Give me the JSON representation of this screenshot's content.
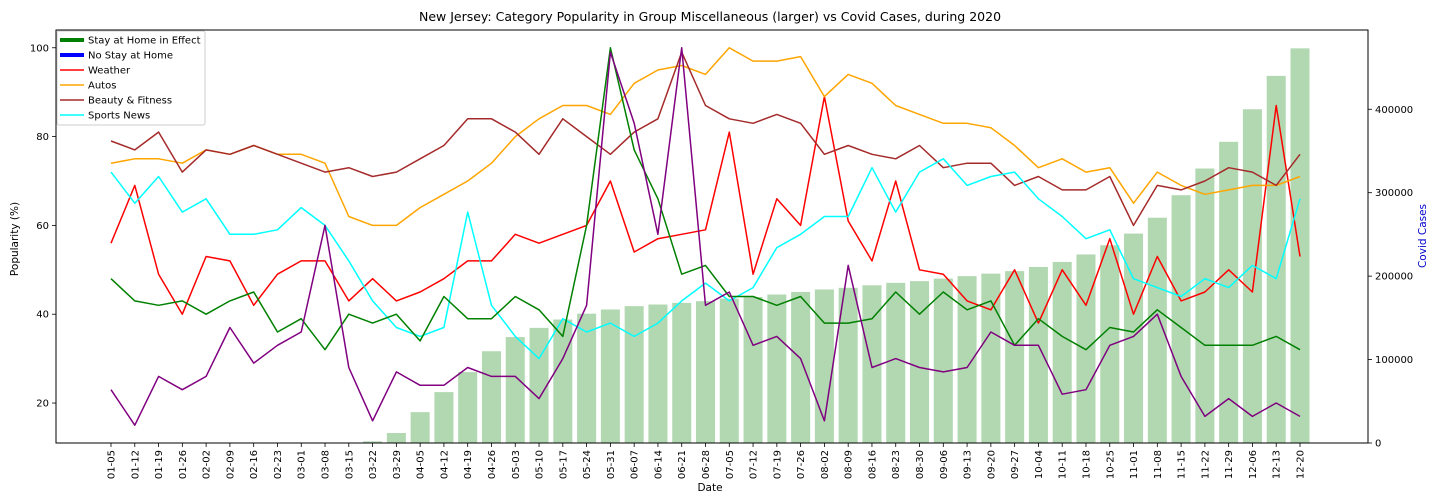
{
  "chart_data": {
    "type": "line",
    "title": "New Jersey: Category Popularity in Group Miscellaneous (larger) vs Covid Cases, during 2020",
    "xlabel": "Date",
    "ylabel": "Popularity (%)",
    "y2label": "Covid Cases",
    "ylim": [
      11,
      104
    ],
    "y2lim": [
      0,
      495000
    ],
    "yticks": [
      20,
      40,
      60,
      80,
      100
    ],
    "y2ticks": [
      0,
      100000,
      200000,
      300000,
      400000
    ],
    "legend_position": "top-left",
    "categories": [
      "01-05",
      "01-12",
      "01-19",
      "01-26",
      "02-02",
      "02-09",
      "02-16",
      "02-23",
      "03-01",
      "03-08",
      "03-15",
      "03-22",
      "03-29",
      "04-05",
      "04-12",
      "04-19",
      "04-26",
      "05-03",
      "05-10",
      "05-17",
      "05-24",
      "05-31",
      "06-07",
      "06-14",
      "06-21",
      "06-28",
      "07-05",
      "07-12",
      "07-19",
      "07-26",
      "08-02",
      "08-09",
      "08-16",
      "08-23",
      "08-30",
      "09-06",
      "09-13",
      "09-20",
      "09-27",
      "10-04",
      "10-11",
      "10-18",
      "10-25",
      "11-01",
      "11-08",
      "11-15",
      "11-22",
      "11-29",
      "12-06",
      "12-13",
      "12-20"
    ],
    "legend": [
      {
        "name": "Stay at Home in Effect",
        "color": "#008000",
        "thick": true
      },
      {
        "name": "No Stay at Home",
        "color": "#0000ff",
        "thick": true
      },
      {
        "name": "Weather",
        "color": "#ff0000",
        "thick": false
      },
      {
        "name": "Autos",
        "color": "#ffa500",
        "thick": false
      },
      {
        "name": "Beauty & Fitness",
        "color": "#a52a2a",
        "thick": false
      },
      {
        "name": "Sports News",
        "color": "#00ffff",
        "thick": false
      }
    ],
    "bars": {
      "color": "#b2d8b2",
      "values": [
        0,
        0,
        0,
        0,
        0,
        0,
        0,
        0,
        0,
        0,
        0,
        2000,
        12000,
        37000,
        61000,
        85000,
        110000,
        127000,
        138000,
        148000,
        155000,
        160000,
        164000,
        166000,
        168000,
        170000,
        173000,
        175000,
        178000,
        181000,
        184000,
        186000,
        189000,
        192000,
        194000,
        197000,
        200000,
        203000,
        206000,
        211000,
        217000,
        226000,
        237000,
        251000,
        270000,
        297000,
        329000,
        361000,
        400000,
        440000,
        473000
      ]
    },
    "series": [
      {
        "name": "Weather",
        "color": "#ff0000",
        "values": [
          56,
          69,
          49,
          40,
          53,
          52,
          42,
          49,
          52,
          52,
          43,
          48,
          43,
          45,
          48,
          52,
          52,
          58,
          56,
          58,
          60,
          70,
          54,
          57,
          58,
          59,
          81,
          49,
          66,
          60,
          89,
          61,
          52,
          70,
          50,
          49,
          43,
          41,
          50,
          38,
          50,
          42,
          57,
          40,
          53,
          43,
          45,
          50,
          45,
          87,
          53
        ]
      },
      {
        "name": "Autos",
        "color": "#ffa500",
        "values": [
          74,
          75,
          75,
          74,
          77,
          76,
          78,
          76,
          76,
          74,
          62,
          60,
          60,
          64,
          67,
          70,
          74,
          80,
          84,
          87,
          87,
          85,
          92,
          95,
          96,
          94,
          100,
          97,
          97,
          98,
          89,
          94,
          92,
          87,
          85,
          83,
          83,
          82,
          78,
          73,
          75,
          72,
          73,
          65,
          72,
          69,
          67,
          68,
          69,
          69,
          71
        ]
      },
      {
        "name": "Beauty & Fitness",
        "color": "#a52a2a",
        "values": [
          79,
          77,
          81,
          72,
          77,
          76,
          78,
          76,
          74,
          72,
          73,
          71,
          72,
          75,
          78,
          84,
          84,
          81,
          76,
          84,
          80,
          76,
          81,
          84,
          99,
          87,
          84,
          83,
          85,
          83,
          76,
          78,
          76,
          75,
          78,
          73,
          74,
          74,
          69,
          71,
          68,
          68,
          71,
          60,
          69,
          68,
          70,
          73,
          72,
          69,
          76
        ]
      },
      {
        "name": "Sports News",
        "color": "#00ffff",
        "values": [
          72,
          65,
          71,
          63,
          66,
          58,
          58,
          59,
          64,
          60,
          52,
          43,
          37,
          35,
          37,
          63,
          42,
          35,
          30,
          39,
          36,
          38,
          35,
          38,
          43,
          47,
          43,
          46,
          55,
          58,
          62,
          62,
          73,
          63,
          72,
          75,
          69,
          71,
          72,
          66,
          62,
          57,
          59,
          48,
          46,
          44,
          48,
          46,
          51,
          48,
          66
        ]
      },
      {
        "name": "",
        "color": "#008000",
        "values": [
          48,
          43,
          42,
          43,
          40,
          43,
          45,
          36,
          39,
          32,
          40,
          38,
          40,
          34,
          44,
          39,
          39,
          44,
          41,
          35,
          60,
          100,
          77,
          66,
          49,
          51,
          44,
          44,
          42,
          44,
          38,
          38,
          39,
          45,
          40,
          45,
          41,
          43,
          33,
          39,
          35,
          32,
          37,
          36,
          41,
          37,
          33,
          33,
          33,
          35,
          32
        ]
      },
      {
        "name": "",
        "color": "#800080",
        "values": [
          23,
          15,
          26,
          23,
          26,
          37,
          29,
          33,
          36,
          60,
          28,
          16,
          27,
          24,
          24,
          28,
          26,
          26,
          21,
          30,
          42,
          99,
          83,
          58,
          100,
          42,
          45,
          33,
          35,
          30,
          16,
          51,
          28,
          30,
          28,
          27,
          28,
          36,
          33,
          33,
          22,
          23,
          33,
          35,
          40,
          26,
          17,
          21,
          17,
          20,
          17
        ]
      }
    ]
  }
}
